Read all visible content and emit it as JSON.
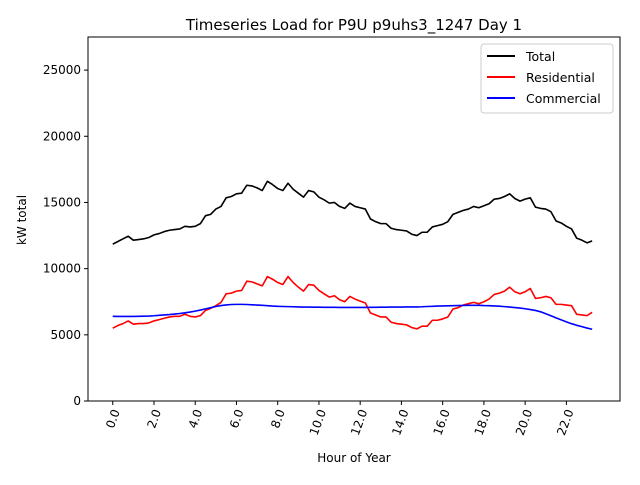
{
  "chart_data": {
    "type": "line",
    "title": "Timeseries Load for P9U p9uhs3_1247  Day 1",
    "xlabel": "Hour of Year",
    "ylabel": "kW total",
    "xlim": [
      -1.2,
      24.6
    ],
    "ylim": [
      0,
      27500
    ],
    "x_ticks": [
      0,
      2,
      4,
      6,
      8,
      10,
      12,
      14,
      16,
      18,
      20,
      22
    ],
    "x_tick_labels": [
      "0.0",
      "2.0",
      "4.0",
      "6.0",
      "8.0",
      "10.0",
      "12.0",
      "14.0",
      "16.0",
      "18.0",
      "20.0",
      "22.0"
    ],
    "y_ticks": [
      0,
      5000,
      10000,
      15000,
      20000,
      25000
    ],
    "y_tick_labels": [
      "0",
      "5000",
      "10000",
      "15000",
      "20000",
      "25000"
    ],
    "legend_position": "top-right",
    "x_start": 0,
    "x_step": 0.25,
    "series": [
      {
        "name": "Total",
        "color": "#000000",
        "values": [
          11850,
          12050,
          12250,
          12450,
          12150,
          12200,
          12250,
          12350,
          12550,
          12650,
          12800,
          12900,
          12950,
          13000,
          13200,
          13150,
          13200,
          13400,
          14000,
          14100,
          14500,
          14700,
          15350,
          15450,
          15650,
          15700,
          16300,
          16250,
          16100,
          15900,
          16600,
          16350,
          16050,
          15900,
          16450,
          16000,
          15700,
          15400,
          15900,
          15800,
          15400,
          15200,
          14950,
          15000,
          14700,
          14550,
          14950,
          14700,
          14600,
          14500,
          13750,
          13550,
          13400,
          13400,
          13050,
          12950,
          12900,
          12850,
          12600,
          12500,
          12750,
          12750,
          13150,
          13250,
          13350,
          13550,
          14100,
          14250,
          14400,
          14500,
          14700,
          14600,
          14750,
          14900,
          15250,
          15300,
          15450,
          15650,
          15300,
          15100,
          15250,
          15350,
          14650,
          14550,
          14500,
          14300,
          13600,
          13450,
          13200,
          13000,
          12300,
          12150,
          11950,
          12100
        ]
      },
      {
        "name": "Residential",
        "color": "#ff0000",
        "values": [
          5500,
          5700,
          5850,
          6050,
          5800,
          5850,
          5850,
          5900,
          6050,
          6150,
          6250,
          6350,
          6400,
          6400,
          6550,
          6400,
          6350,
          6450,
          6850,
          7000,
          7200,
          7450,
          8100,
          8150,
          8300,
          8350,
          9050,
          9000,
          8850,
          8700,
          9400,
          9200,
          8950,
          8800,
          9400,
          8950,
          8600,
          8300,
          8800,
          8750,
          8350,
          8100,
          7850,
          7950,
          7650,
          7500,
          7900,
          7700,
          7550,
          7400,
          6650,
          6500,
          6350,
          6350,
          5950,
          5850,
          5800,
          5750,
          5550,
          5450,
          5650,
          5650,
          6100,
          6100,
          6200,
          6350,
          6950,
          7050,
          7250,
          7350,
          7450,
          7350,
          7500,
          7700,
          8050,
          8150,
          8300,
          8600,
          8250,
          8100,
          8250,
          8500,
          7750,
          7800,
          7900,
          7800,
          7300,
          7300,
          7250,
          7200,
          6550,
          6500,
          6450,
          6700
        ]
      },
      {
        "name": "Commercial",
        "color": "#0000ff",
        "values": [
          6400,
          6390,
          6390,
          6390,
          6390,
          6400,
          6410,
          6420,
          6440,
          6470,
          6500,
          6530,
          6570,
          6610,
          6660,
          6720,
          6790,
          6870,
          6960,
          7050,
          7140,
          7210,
          7260,
          7290,
          7300,
          7300,
          7290,
          7270,
          7250,
          7230,
          7200,
          7170,
          7150,
          7140,
          7130,
          7120,
          7110,
          7100,
          7100,
          7090,
          7090,
          7080,
          7080,
          7080,
          7070,
          7070,
          7070,
          7070,
          7070,
          7070,
          7080,
          7080,
          7090,
          7090,
          7100,
          7100,
          7100,
          7110,
          7110,
          7110,
          7120,
          7140,
          7150,
          7170,
          7180,
          7190,
          7200,
          7210,
          7220,
          7230,
          7230,
          7230,
          7210,
          7200,
          7180,
          7160,
          7130,
          7100,
          7060,
          7020,
          6970,
          6910,
          6840,
          6740,
          6590,
          6440,
          6280,
          6130,
          5980,
          5840,
          5720,
          5620,
          5510,
          5420
        ]
      }
    ]
  }
}
